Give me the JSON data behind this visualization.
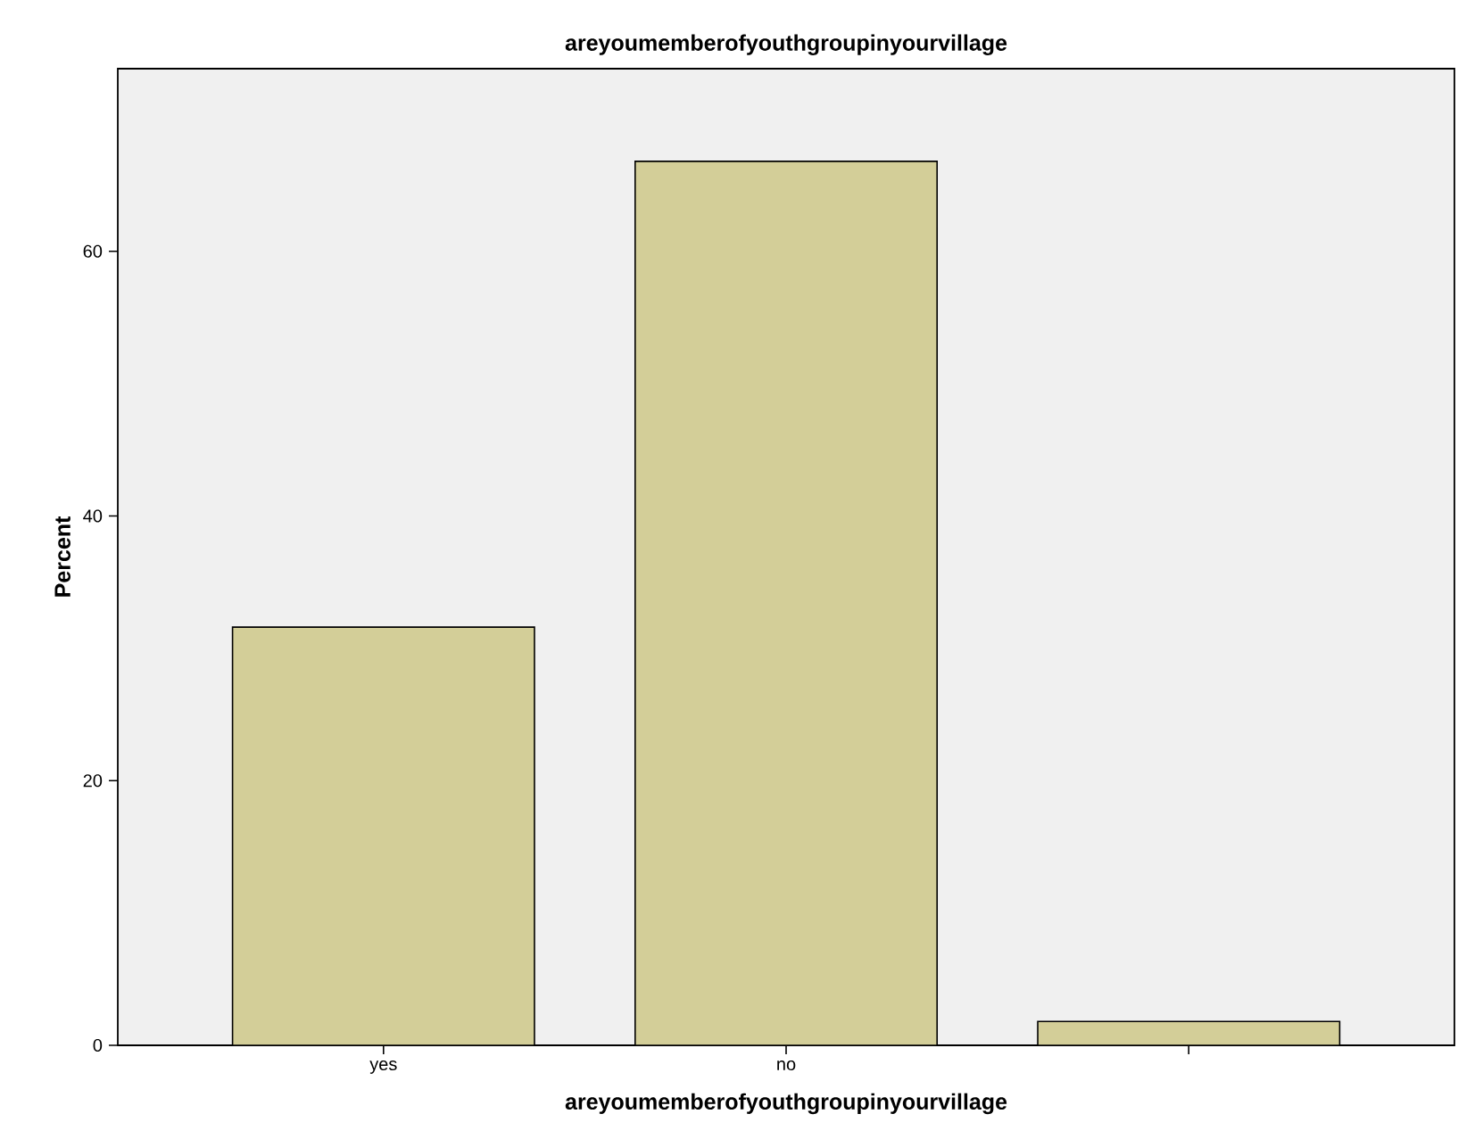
{
  "chart_data": {
    "type": "bar",
    "title": "areyoumemberofyouthgroupinyourvillage",
    "xlabel": "areyoumemberofyouthgroupinyourvillage",
    "ylabel": "Percent",
    "categories": [
      "yes",
      "no",
      null
    ],
    "values": [
      31.6,
      66.8,
      1.8
    ],
    "color": "#d3ce98",
    "ylim": [
      0,
      73.8
    ],
    "yticks": [
      0,
      20,
      40,
      60
    ],
    "grid": false
  }
}
